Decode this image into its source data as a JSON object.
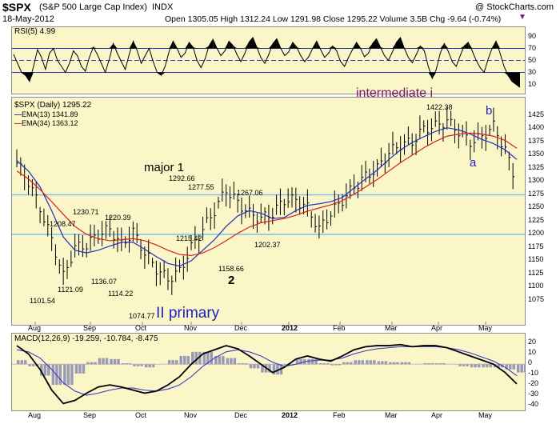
{
  "header": {
    "symbol": "$SPX",
    "name": "(S&P 500 Large Cap Index)",
    "exchange": "INDX",
    "source": "@ StockCharts.com",
    "date": "18-May-2012",
    "quote": "Open 1305.05  High 1312.24  Low 1291.98  Close 1295.22  Volume 3.5B  Chg -9.64 (-0.74%)"
  },
  "colors": {
    "background": "#fbf6c8",
    "ema13": "#1e2fbf",
    "ema34": "#d61f1f",
    "hline": "#7ec0e6",
    "title_purple": "#7a1470",
    "wave_blue": "#1d1fbf"
  },
  "chart_data": [
    {
      "type": "line",
      "title": "RSI(5) 4.99",
      "yticks": [
        "90",
        "70",
        "50",
        "30",
        "10"
      ],
      "ylim": [
        0,
        100
      ],
      "levels": [
        70,
        50,
        30
      ],
      "series": [
        {
          "name": "RSI(5)",
          "values": [
            60,
            45,
            30,
            25,
            15,
            40,
            68,
            55,
            35,
            62,
            70,
            50,
            40,
            30,
            45,
            66,
            58,
            40,
            32,
            55,
            72,
            60,
            45,
            30,
            52,
            78,
            62,
            48,
            35,
            60,
            82,
            66,
            45,
            58,
            70,
            48,
            30,
            25,
            40,
            65,
            82,
            70,
            55,
            62,
            80,
            72,
            50,
            38,
            52,
            74,
            85,
            70,
            58,
            66,
            82,
            75,
            60,
            48,
            62,
            80,
            88,
            72,
            55,
            45,
            60,
            78,
            86,
            70,
            58,
            64,
            80,
            72,
            58,
            48,
            56,
            70,
            82,
            68,
            55,
            62,
            74,
            66,
            48,
            40,
            55,
            68,
            80,
            70,
            56,
            62,
            78,
            86,
            72,
            58,
            50,
            64,
            80,
            88,
            70,
            55,
            46,
            60,
            74,
            66,
            40,
            20,
            35,
            62,
            78,
            65,
            48,
            40,
            58,
            74,
            80,
            66,
            50,
            38,
            30,
            52,
            70,
            82,
            62,
            40,
            25,
            15,
            10,
            5
          ]
        }
      ]
    },
    {
      "type": "line",
      "title": "$SPX (Daily) 1295.22",
      "ylim": [
        1050,
        1450
      ],
      "yticks": [
        "1425",
        "1400",
        "1375",
        "1350",
        "1325",
        "1300",
        "1275",
        "1250",
        "1225",
        "1200",
        "1175",
        "1150",
        "1125",
        "1100",
        "1075"
      ],
      "xticks": [
        "Aug",
        "Sep",
        "Oct",
        "Nov",
        "Dec",
        "2012",
        "Feb",
        "Mar",
        "Apr",
        "May"
      ],
      "hlines": [
        1275,
        1200
      ],
      "series": [
        {
          "name": "EMA(13) 1341.89",
          "values": [
            1340,
            1320,
            1290,
            1245,
            1195,
            1170,
            1165,
            1170,
            1178,
            1185,
            1185,
            1172,
            1158,
            1145,
            1140,
            1150,
            1170,
            1190,
            1215,
            1235,
            1245,
            1240,
            1230,
            1232,
            1245,
            1255,
            1258,
            1262,
            1270,
            1288,
            1305,
            1322,
            1342,
            1360,
            1374,
            1385,
            1395,
            1402,
            1398,
            1390,
            1380,
            1372,
            1360,
            1342
          ]
        },
        {
          "name": "EMA(34) 1363.12",
          "values": [
            1320,
            1305,
            1285,
            1262,
            1238,
            1215,
            1200,
            1192,
            1188,
            1190,
            1192,
            1188,
            1180,
            1170,
            1162,
            1160,
            1165,
            1175,
            1188,
            1202,
            1214,
            1222,
            1226,
            1230,
            1236,
            1244,
            1250,
            1256,
            1264,
            1276,
            1290,
            1304,
            1320,
            1336,
            1350,
            1364,
            1376,
            1386,
            1390,
            1392,
            1390,
            1386,
            1378,
            1363
          ]
        },
        {
          "name": "$SPX",
          "values": [
            1335,
            1300,
            1250,
            1190,
            1120,
            1175,
            1180,
            1200,
            1210,
            1180,
            1205,
            1165,
            1135,
            1115,
            1130,
            1175,
            1210,
            1245,
            1285,
            1260,
            1240,
            1230,
            1240,
            1265,
            1265,
            1250,
            1210,
            1240,
            1265,
            1290,
            1310,
            1325,
            1355,
            1370,
            1375,
            1400,
            1405,
            1415,
            1395,
            1375,
            1385,
            1405,
            1360,
            1295
          ]
        }
      ],
      "annotations": [
        {
          "text": "1230.71",
          "x": "Aug"
        },
        {
          "text": "1208.47",
          "x": "Aug"
        },
        {
          "text": "1220.39",
          "x": "Sep"
        },
        {
          "text": "1101.54",
          "x": "Aug"
        },
        {
          "text": "1121.09",
          "x": "Sep"
        },
        {
          "text": "1136.07",
          "x": "Sep"
        },
        {
          "text": "1114.22",
          "x": "Sep"
        },
        {
          "text": "1074.77",
          "x": "Oct"
        },
        {
          "text": "1292.66",
          "x": "Oct"
        },
        {
          "text": "1277.55",
          "x": "Nov"
        },
        {
          "text": "1215.42",
          "x": "Nov"
        },
        {
          "text": "1267.06",
          "x": "Dec"
        },
        {
          "text": "1158.66",
          "x": "Nov"
        },
        {
          "text": "1202.37",
          "x": "Dec"
        },
        {
          "text": "1422.38",
          "x": "Apr"
        }
      ],
      "wave_labels": [
        "major 1",
        "2",
        "II primary",
        "intermediate i",
        "a",
        "b"
      ]
    },
    {
      "type": "line",
      "title": "MACD(12,26,9) -19.259, -10.784, -8.475",
      "ylim": [
        -40,
        25
      ],
      "yticks": [
        "20",
        "10",
        "0",
        "-10",
        "-20",
        "-30",
        "-40"
      ],
      "xticks": [
        "Aug",
        "Sep",
        "Oct",
        "Nov",
        "Dec",
        "2012",
        "Feb",
        "Mar",
        "Apr",
        "May"
      ],
      "series": [
        {
          "name": "MACD",
          "values": [
            18,
            10,
            -5,
            -25,
            -38,
            -35,
            -28,
            -22,
            -20,
            -22,
            -25,
            -28,
            -26,
            -20,
            -12,
            0,
            10,
            14,
            18,
            15,
            8,
            0,
            -8,
            -3,
            5,
            8,
            5,
            3,
            8,
            14,
            17,
            18,
            18,
            19,
            17,
            18,
            18,
            16,
            12,
            8,
            4,
            0,
            -8,
            -19
          ]
        },
        {
          "name": "Signal",
          "values": [
            14,
            12,
            6,
            -5,
            -18,
            -26,
            -30,
            -28,
            -25,
            -23,
            -23,
            -25,
            -26,
            -24,
            -20,
            -12,
            -2,
            6,
            12,
            14,
            12,
            8,
            2,
            -2,
            0,
            3,
            4,
            4,
            6,
            10,
            13,
            15,
            16,
            17,
            17,
            17,
            17,
            16,
            14,
            11,
            7,
            3,
            -3,
            -11
          ]
        },
        {
          "name": "Histogram",
          "values": [
            4,
            -2,
            -11,
            -20,
            -20,
            -9,
            2,
            6,
            5,
            1,
            -2,
            -3,
            0,
            4,
            8,
            12,
            12,
            8,
            6,
            1,
            -4,
            -8,
            -10,
            -1,
            5,
            5,
            1,
            -1,
            2,
            4,
            4,
            3,
            2,
            2,
            0,
            1,
            1,
            0,
            -2,
            -3,
            -3,
            -3,
            -5,
            -8
          ]
        }
      ]
    }
  ]
}
